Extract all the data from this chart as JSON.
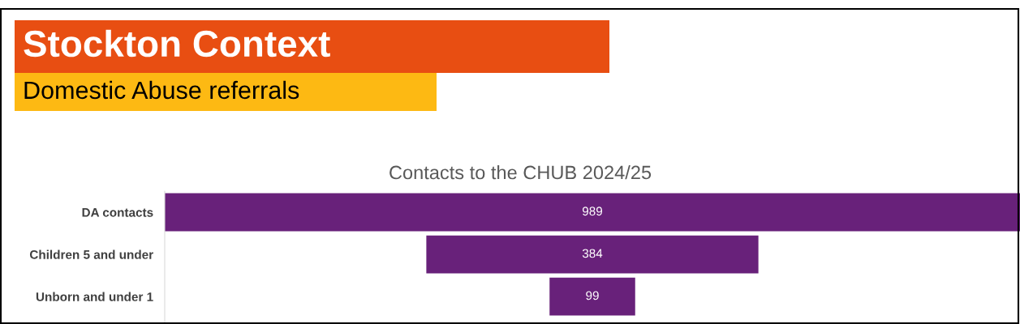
{
  "chart_data": {
    "type": "other",
    "title": "Stockton Context",
    "subtitle": "Domestic Abuse referrals",
    "annotations": [
      "Contacts to the CHUB 2024/25"
    ],
    "categories": [
      "DA contacts",
      "Children 5 and under",
      "Unborn and under 1"
    ],
    "values": [
      989,
      384,
      99
    ],
    "color": "#68217a",
    "data_labels": true
  }
}
